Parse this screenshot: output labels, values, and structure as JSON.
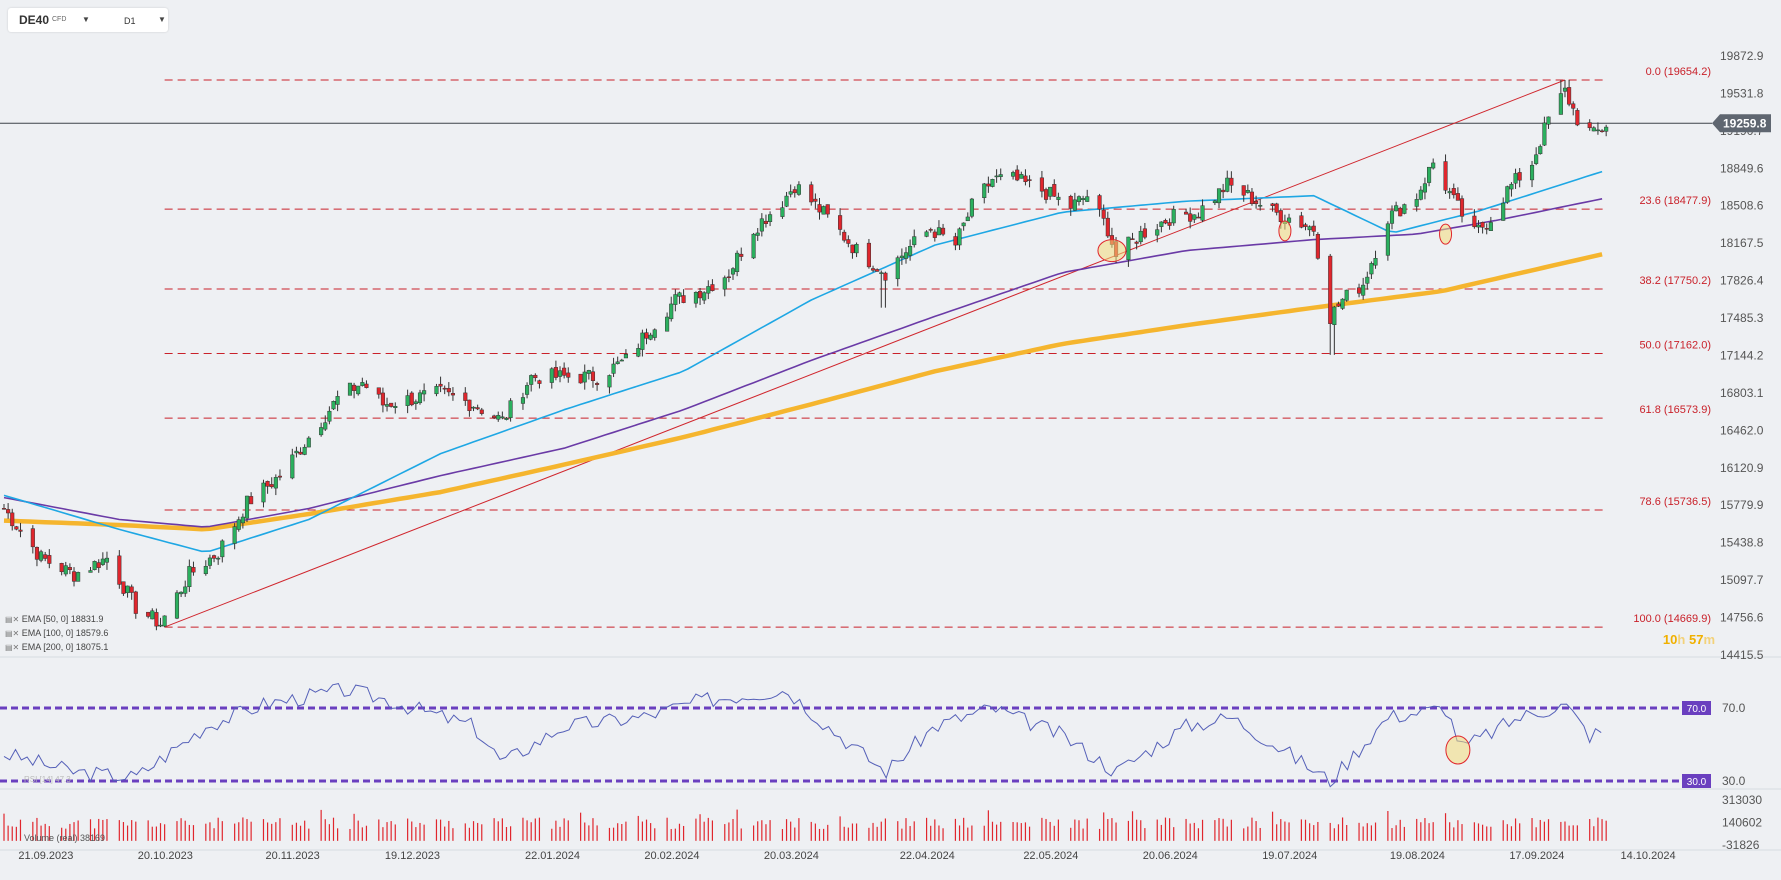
{
  "instrument": {
    "symbol": "DE40",
    "type": "CFD",
    "timeframe": "D1"
  },
  "current_price_label": "19259.8",
  "countdown": {
    "hours": "10",
    "hours_unit": "h",
    "minutes": "57",
    "minutes_unit": "m"
  },
  "indicators": [
    {
      "label": "EMA [50, 0] 18831.9",
      "color": "#1ea7e4"
    },
    {
      "label": "EMA [100, 0] 18579.6",
      "color": "#6a3aa6"
    },
    {
      "label": "EMA [200, 0] 18075.1",
      "color": "#f5b52e"
    }
  ],
  "volume_label": "Volume (real) 38169",
  "rsi_label": "RSI [14] 47.3",
  "colors": {
    "up": "#2bb05e",
    "down": "#e0262d",
    "fib": "#c9212a",
    "rsi_line": "#5560b8",
    "rsi_level": "#6a3fbf",
    "volume": "#e0262d",
    "price_badge": "#5f6670",
    "highlight": "#f4dc7a"
  },
  "chart_data": {
    "type": "candlestick",
    "instrument": "DE40",
    "timeframe": "D1",
    "x_ticks": [
      "21.09.2023",
      "20.10.2023",
      "20.11.2023",
      "19.12.2023",
      "22.01.2024",
      "20.02.2024",
      "20.03.2024",
      "22.04.2024",
      "22.05.2024",
      "20.06.2024",
      "19.07.2024",
      "19.08.2024",
      "17.09.2024",
      "14.10.2024"
    ],
    "x_tick_dates": [
      "2023-09-21",
      "2023-10-20",
      "2023-11-20",
      "2023-12-19",
      "2024-01-22",
      "2024-02-20",
      "2024-03-20",
      "2024-04-22",
      "2024-05-22",
      "2024-06-20",
      "2024-07-19",
      "2024-08-19",
      "2024-09-17",
      "2024-10-14"
    ],
    "x_range": [
      "2023-09-18",
      "2024-10-18"
    ],
    "y_ticks": [
      "19872.9",
      "19531.8",
      "19190.7",
      "18849.6",
      "18508.6",
      "18167.5",
      "17826.4",
      "17485.3",
      "17144.2",
      "16803.1",
      "16462.0",
      "16120.9",
      "15779.9",
      "15438.8",
      "15097.7",
      "14756.6",
      "14415.5"
    ],
    "y_range": [
      14415.5,
      19872.9
    ],
    "last_price": 19259.8,
    "close_path": [
      [
        "2023-09-18",
        15750
      ],
      [
        "2023-09-27",
        15300
      ],
      [
        "2023-10-05",
        15150
      ],
      [
        "2023-10-13",
        15300
      ],
      [
        "2023-10-20",
        14850
      ],
      [
        "2023-10-26",
        14700
      ],
      [
        "2023-11-02",
        15150
      ],
      [
        "2023-11-09",
        15350
      ],
      [
        "2023-11-16",
        15800
      ],
      [
        "2023-11-24",
        16050
      ],
      [
        "2023-12-01",
        16400
      ],
      [
        "2023-12-08",
        16750
      ],
      [
        "2023-12-14",
        16900
      ],
      [
        "2023-12-19",
        16700
      ],
      [
        "2024-01-02",
        16800
      ],
      [
        "2024-01-10",
        16700
      ],
      [
        "2024-01-17",
        16550
      ],
      [
        "2024-01-24",
        16950
      ],
      [
        "2024-02-02",
        16950
      ],
      [
        "2024-02-09",
        16950
      ],
      [
        "2024-02-16",
        17100
      ],
      [
        "2024-02-22",
        17400
      ],
      [
        "2024-02-28",
        17650
      ],
      [
        "2024-03-06",
        17750
      ],
      [
        "2024-03-12",
        17900
      ],
      [
        "2024-03-18",
        18300
      ],
      [
        "2024-03-25",
        18550
      ],
      [
        "2024-03-28",
        18700
      ],
      [
        "2024-04-05",
        18400
      ],
      [
        "2024-04-12",
        18100
      ],
      [
        "2024-04-19",
        17900
      ],
      [
        "2024-04-24",
        18100
      ],
      [
        "2024-04-30",
        18300
      ],
      [
        "2024-05-06",
        18150
      ],
      [
        "2024-05-10",
        18500
      ],
      [
        "2024-05-15",
        18750
      ],
      [
        "2024-05-20",
        18750
      ],
      [
        "2024-05-27",
        18650
      ],
      [
        "2024-06-03",
        18500
      ],
      [
        "2024-06-07",
        18600
      ],
      [
        "2024-06-12",
        18300
      ],
      [
        "2024-06-14",
        18050
      ],
      [
        "2024-06-20",
        18250
      ],
      [
        "2024-06-27",
        18400
      ],
      [
        "2024-07-04",
        18450
      ],
      [
        "2024-07-11",
        18700
      ],
      [
        "2024-07-16",
        18600
      ],
      [
        "2024-07-22",
        18450
      ],
      [
        "2024-07-26",
        18400
      ],
      [
        "2024-08-01",
        18300
      ],
      [
        "2024-08-05",
        17500
      ],
      [
        "2024-08-08",
        17650
      ],
      [
        "2024-08-13",
        17800
      ],
      [
        "2024-08-19",
        18400
      ],
      [
        "2024-08-26",
        18600
      ],
      [
        "2024-08-30",
        18900
      ],
      [
        "2024-09-04",
        18550
      ],
      [
        "2024-09-09",
        18250
      ],
      [
        "2024-09-13",
        18400
      ],
      [
        "2024-09-17",
        18650
      ],
      [
        "2024-09-23",
        18900
      ],
      [
        "2024-09-27",
        19300
      ],
      [
        "2024-10-01",
        19550
      ],
      [
        "2024-10-04",
        19300
      ],
      [
        "2024-10-08",
        19150
      ],
      [
        "2024-10-11",
        19250
      ]
    ],
    "extremes": [
      [
        "2023-10-27",
        14669.9
      ],
      [
        "2024-04-19",
        17580
      ],
      [
        "2024-08-05",
        17150
      ],
      [
        "2024-10-01",
        19654.2
      ]
    ],
    "ema": [
      {
        "period": 50,
        "last": 18831.9,
        "path": [
          [
            "2023-09-18",
            15870
          ],
          [
            "2023-10-16",
            15560
          ],
          [
            "2023-11-06",
            15350
          ],
          [
            "2023-12-01",
            15650
          ],
          [
            "2024-01-02",
            16250
          ],
          [
            "2024-02-01",
            16650
          ],
          [
            "2024-03-01",
            17000
          ],
          [
            "2024-04-01",
            17650
          ],
          [
            "2024-05-01",
            18150
          ],
          [
            "2024-06-01",
            18450
          ],
          [
            "2024-07-01",
            18550
          ],
          [
            "2024-08-01",
            18600
          ],
          [
            "2024-08-20",
            18260
          ],
          [
            "2024-09-10",
            18460
          ],
          [
            "2024-10-11",
            18831.9
          ]
        ]
      },
      {
        "period": 100,
        "last": 18579.6,
        "path": [
          [
            "2023-09-18",
            15850
          ],
          [
            "2023-10-16",
            15650
          ],
          [
            "2023-11-06",
            15580
          ],
          [
            "2023-12-01",
            15750
          ],
          [
            "2024-01-02",
            16050
          ],
          [
            "2024-02-01",
            16300
          ],
          [
            "2024-03-01",
            16650
          ],
          [
            "2024-04-01",
            17100
          ],
          [
            "2024-05-01",
            17500
          ],
          [
            "2024-06-01",
            17900
          ],
          [
            "2024-07-01",
            18100
          ],
          [
            "2024-08-01",
            18200
          ],
          [
            "2024-08-26",
            18250
          ],
          [
            "2024-09-15",
            18380
          ],
          [
            "2024-10-11",
            18579.6
          ]
        ]
      },
      {
        "period": 200,
        "last": 18075.1,
        "path": [
          [
            "2023-09-18",
            15640
          ],
          [
            "2023-10-16",
            15600
          ],
          [
            "2023-11-06",
            15560
          ],
          [
            "2023-12-01",
            15700
          ],
          [
            "2024-01-02",
            15900
          ],
          [
            "2024-02-01",
            16150
          ],
          [
            "2024-03-01",
            16400
          ],
          [
            "2024-04-01",
            16700
          ],
          [
            "2024-05-01",
            17000
          ],
          [
            "2024-06-01",
            17250
          ],
          [
            "2024-07-01",
            17420
          ],
          [
            "2024-08-01",
            17580
          ],
          [
            "2024-09-01",
            17730
          ],
          [
            "2024-10-11",
            18075.1
          ]
        ]
      }
    ],
    "trendline": [
      [
        "2023-10-27",
        14669.9
      ],
      [
        "2024-10-01",
        19654.2
      ]
    ],
    "fibonacci": [
      {
        "level": "0.0",
        "price": 19654.2,
        "label": "0.0 (19654.2)"
      },
      {
        "level": "23.6",
        "price": 18477.9,
        "label": "23.6 (18477.9)"
      },
      {
        "level": "38.2",
        "price": 17750.2,
        "label": "38.2 (17750.2)"
      },
      {
        "level": "50.0",
        "price": 17162.0,
        "label": "50.0 (17162.0)"
      },
      {
        "level": "61.8",
        "price": 16573.9,
        "label": "61.8 (16573.9)"
      },
      {
        "level": "78.6",
        "price": 15736.5,
        "label": "78.6 (15736.5)"
      },
      {
        "level": "100.0",
        "price": 14669.9,
        "label": "100.0 (14669.9)"
      }
    ],
    "fib_range": [
      "2023-10-27",
      "2024-10-11"
    ],
    "highlights": [
      [
        "2024-06-13",
        18100
      ],
      [
        "2024-07-25",
        18280
      ],
      [
        "2024-09-02",
        18250
      ]
    ],
    "rsi": {
      "ticks": [
        "70.0",
        "30.0"
      ],
      "levels": [
        70,
        30
      ],
      "badges": [
        "70.0",
        "30.0"
      ],
      "path": [
        [
          "2023-09-18",
          45
        ],
        [
          "2023-10-05",
          35
        ],
        [
          "2023-10-20",
          32
        ],
        [
          "2023-11-06",
          60
        ],
        [
          "2023-11-20",
          72
        ],
        [
          "2023-12-10",
          80
        ],
        [
          "2023-12-19",
          75
        ],
        [
          "2024-01-10",
          60
        ],
        [
          "2024-01-17",
          40
        ],
        [
          "2024-02-01",
          60
        ],
        [
          "2024-02-20",
          65
        ],
        [
          "2024-03-05",
          74
        ],
        [
          "2024-03-26",
          80
        ],
        [
          "2024-04-05",
          60
        ],
        [
          "2024-04-19",
          35
        ],
        [
          "2024-05-01",
          60
        ],
        [
          "2024-05-15",
          70
        ],
        [
          "2024-06-01",
          55
        ],
        [
          "2024-06-14",
          35
        ],
        [
          "2024-07-01",
          60
        ],
        [
          "2024-07-12",
          65
        ],
        [
          "2024-07-26",
          45
        ],
        [
          "2024-08-05",
          30
        ],
        [
          "2024-08-19",
          65
        ],
        [
          "2024-09-02",
          70
        ],
        [
          "2024-09-06",
          48
        ],
        [
          "2024-09-20",
          65
        ],
        [
          "2024-10-01",
          72
        ],
        [
          "2024-10-07",
          55
        ],
        [
          "2024-10-11",
          58
        ]
      ],
      "highlight": [
        "2024-09-05",
        47
      ]
    },
    "volume": {
      "ticks": [
        "313030",
        "140602",
        "-31826"
      ],
      "range": [
        -31826,
        313030
      ]
    }
  }
}
